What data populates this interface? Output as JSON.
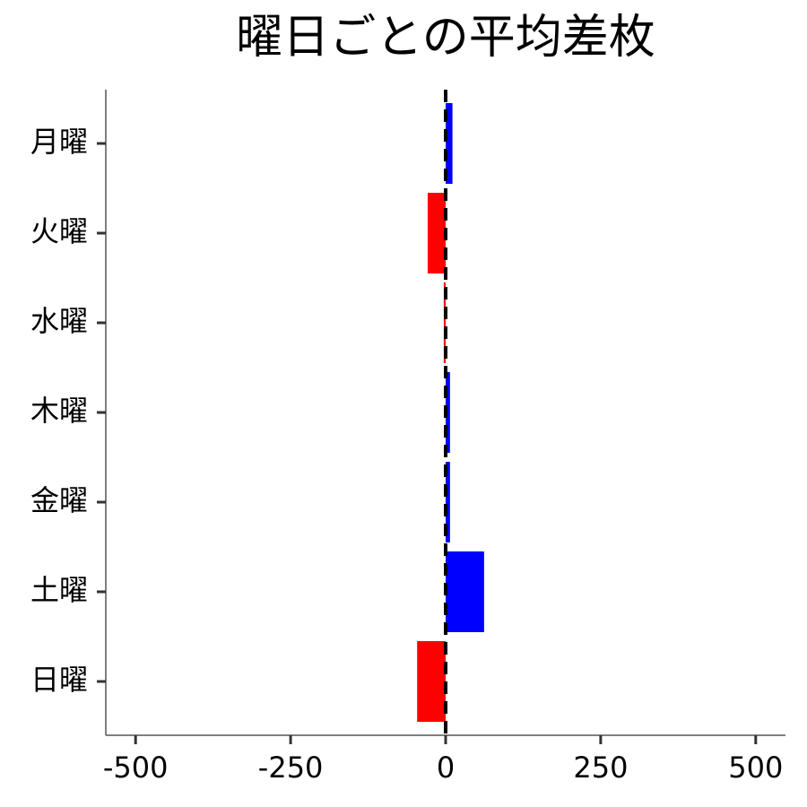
{
  "chart_data": {
    "type": "barh",
    "title": "曜日ごとの平均差枚",
    "categories": [
      "月曜",
      "火曜",
      "水曜",
      "木曜",
      "金曜",
      "土曜",
      "日曜"
    ],
    "values": [
      11,
      -29,
      -3,
      7,
      7,
      62,
      -46
    ],
    "colors": [
      "#0000ff",
      "#ff0000",
      "#ff0000",
      "#0000ff",
      "#0000ff",
      "#0000ff",
      "#ff0000"
    ],
    "xlim": [
      -548,
      548
    ],
    "xticks": [
      -500,
      -250,
      0,
      250,
      500
    ],
    "reference_line": {
      "x": 0,
      "style": "dashed",
      "color": "#000000"
    }
  }
}
